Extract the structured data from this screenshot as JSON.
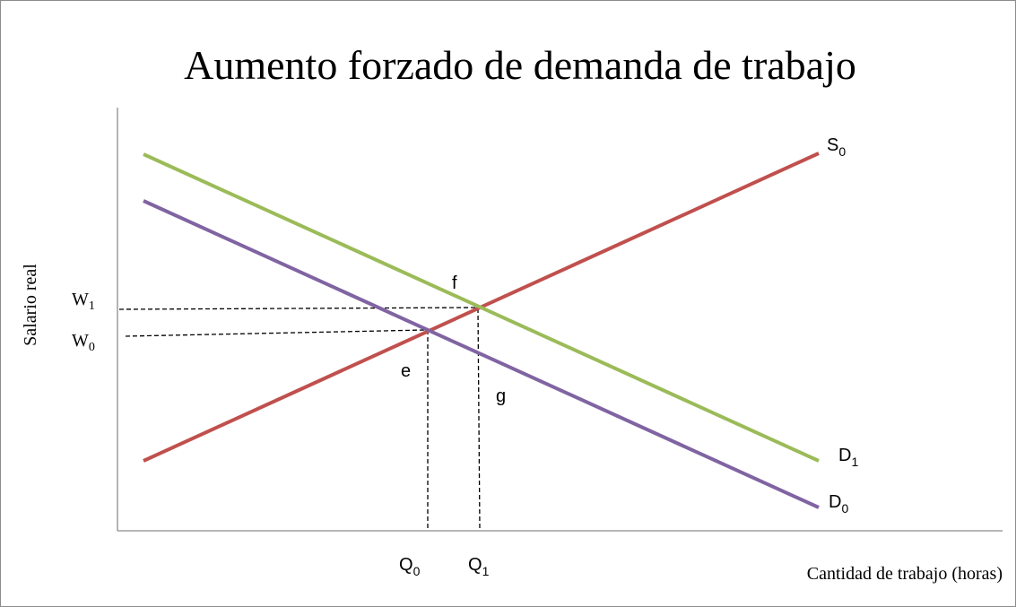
{
  "title": "Aumento forzado de demanda de trabajo",
  "y_axis_label": "Salario real",
  "x_axis_label": "Cantidad de trabajo (horas)",
  "curves": [
    {
      "base": "S",
      "sub": "0"
    },
    {
      "base": "D",
      "sub": "1"
    },
    {
      "base": "D",
      "sub": "0"
    }
  ],
  "points": [
    "f",
    "e",
    "g"
  ],
  "quantities": [
    {
      "base": "Q",
      "sub": "0"
    },
    {
      "base": "Q",
      "sub": "1"
    }
  ],
  "wages": [
    {
      "base": "W",
      "sub": "1"
    },
    {
      "base": "W",
      "sub": "0"
    }
  ]
}
